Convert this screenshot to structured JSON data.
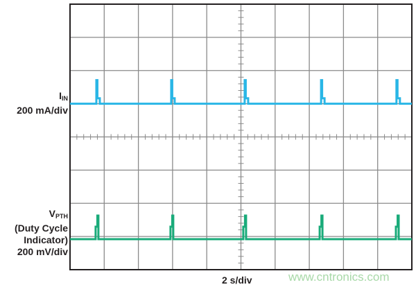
{
  "chart_data": {
    "type": "line",
    "title": "",
    "xlabel": "2 s/div",
    "x_per_div": 2,
    "x_unit": "s",
    "divisions": {
      "x": 10,
      "y": 8
    },
    "xlim": [
      0,
      20
    ],
    "grid": true,
    "series": [
      {
        "name": "IIN",
        "label_main": "I",
        "label_sub": "IN",
        "scale": "200 mA/div",
        "color": "#29b6e6",
        "baseline_div_from_top": 3,
        "spike_times_s": [
          1.54,
          5.92,
          10.22,
          14.69,
          19.1
        ],
        "spike_peak_mA": 142,
        "spike_step_mA": 33
      },
      {
        "name": "VPTH",
        "label_main": "V",
        "label_sub": "PTH",
        "label_line2": "(Duty Cycle",
        "label_line3": "Indicator)",
        "scale": "200 mV/div",
        "color": "#1aab7a",
        "baseline_div_from_top": 7.08,
        "spike_times_s": [
          1.66,
          6.04,
          10.3,
          14.77,
          19.23
        ],
        "spike_peak_mV": 142,
        "spike_step_mV": 75
      }
    ]
  },
  "watermark": "www.cntronics.com"
}
